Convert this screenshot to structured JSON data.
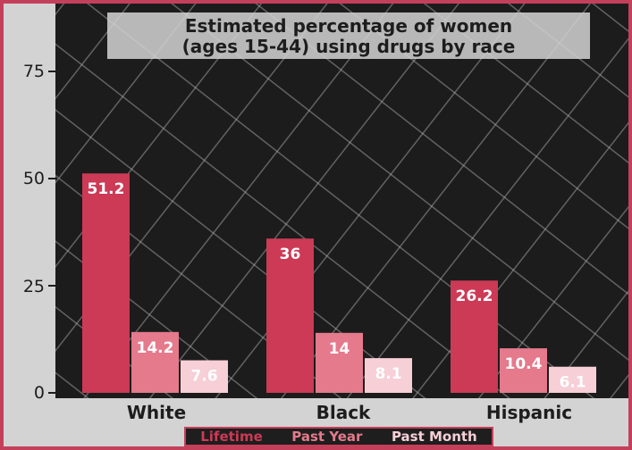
{
  "colors": {
    "frame": "#c4405a",
    "outer_bg": "#d3d3d3",
    "plot_bg": "#1c1c1c",
    "text": "#1d1d1d"
  },
  "chart_data": {
    "type": "bar",
    "title_lines": [
      "Estimated percentage of women",
      "(ages 15-44) using drugs by race"
    ],
    "xlabel": "",
    "ylabel": "",
    "categories": [
      "White",
      "Black",
      "Hispanic"
    ],
    "series": [
      {
        "name": "Lifetime",
        "color": "#cc3a56",
        "label_color": "#ffffff",
        "values": [
          51.2,
          36,
          26.2
        ]
      },
      {
        "name": "Past Year",
        "color": "#e47a8c",
        "label_color": "#ffffff",
        "values": [
          14.2,
          14,
          10.4
        ]
      },
      {
        "name": "Past Month",
        "color": "#f7cfd6",
        "label_color": "#ffffff",
        "values": [
          7.6,
          8.1,
          6.1
        ]
      }
    ],
    "ylim": [
      0,
      75
    ],
    "yticks": [
      "0",
      "25",
      "50",
      "75"
    ],
    "grid": false,
    "legend_position": "bottom"
  }
}
